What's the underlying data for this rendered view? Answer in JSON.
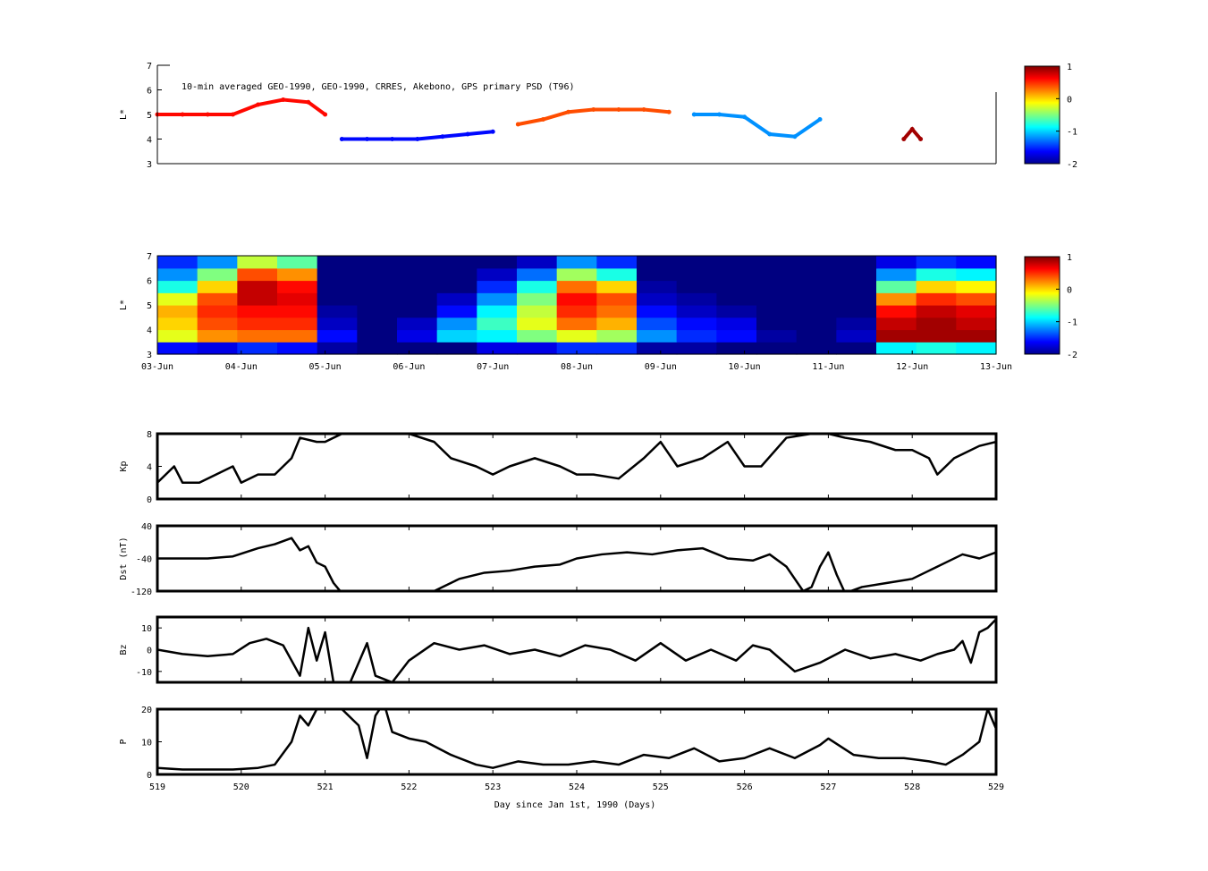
{
  "chart_data": [
    {
      "type": "scatter",
      "panel": "L* primary PSD",
      "title": "10-min averaged GEO-1990, GEO-1990, CRRES, Akebono, GPS  primary PSD (T96)",
      "ylabel": "L*",
      "ylim": [
        3,
        7
      ],
      "yticks": [
        3,
        4,
        5,
        6,
        7
      ],
      "colorbar": {
        "min": -2,
        "max": 1,
        "ticks": [
          "1",
          "0",
          "-1",
          "-2"
        ],
        "colormap": "jet"
      },
      "tracks": [
        {
          "name": "",
          "x": [
            519.0,
            519.3,
            519.6,
            519.9,
            520.2,
            520.5,
            520.8,
            521.0
          ],
          "y": [
            5.0,
            5.0,
            5.0,
            5.0,
            5.4,
            5.6,
            5.5,
            5.0
          ],
          "value": 0.6
        },
        {
          "name": "",
          "x": [
            521.2,
            521.5,
            521.8,
            522.1,
            522.4,
            522.7,
            523.0
          ],
          "y": [
            4.0,
            4.0,
            4.0,
            4.0,
            4.1,
            4.2,
            4.3
          ],
          "value": -1.6
        },
        {
          "name": "",
          "x": [
            523.3,
            523.6,
            523.9,
            524.2,
            524.5,
            524.8,
            525.1
          ],
          "y": [
            4.6,
            4.8,
            5.1,
            5.2,
            5.2,
            5.2,
            5.1
          ],
          "value": 0.4
        },
        {
          "name": "",
          "x": [
            525.4,
            525.7,
            526.0,
            526.3,
            526.6,
            526.9
          ],
          "y": [
            5.0,
            5.0,
            4.9,
            4.2,
            4.1,
            4.8
          ],
          "value": -1.2
        },
        {
          "name": "",
          "x": [
            527.9,
            528.0,
            528.1
          ],
          "y": [
            4.0,
            4.4,
            4.0
          ],
          "value": 0.9
        }
      ]
    },
    {
      "type": "heatmap",
      "panel": "L* PSD reanalysis",
      "ylabel": "L*",
      "ylim": [
        3,
        7
      ],
      "yticks": [
        3,
        4,
        5,
        6,
        7
      ],
      "x_tick_labels": [
        "03-Jun",
        "04-Jun",
        "05-Jun",
        "06-Jun",
        "07-Jun",
        "08-Jun",
        "09-Jun",
        "10-Jun",
        "11-Jun",
        "12-Jun",
        "13-Jun"
      ],
      "colorbar": {
        "min": -2,
        "max": 1,
        "ticks": [
          "1",
          "0",
          "-1",
          "-2"
        ],
        "colormap": "jet"
      },
      "x": [
        519.0,
        519.5,
        520.0,
        520.5,
        521.0,
        521.5,
        522.0,
        522.5,
        523.0,
        523.5,
        524.0,
        524.5,
        525.0,
        525.5,
        526.0,
        526.5,
        527.0,
        527.5,
        528.0,
        528.5,
        529.0
      ],
      "L": [
        3.25,
        3.75,
        4.25,
        4.75,
        5.25,
        5.75,
        6.25,
        6.75
      ],
      "values": [
        [
          -1.6,
          -1.7,
          -1.5,
          -1.6,
          -1.9,
          -2.0,
          -2.0,
          -2.0,
          -1.7,
          -1.7,
          -1.5,
          -1.5,
          -1.9,
          -1.9,
          -2.0,
          -2.0,
          -2.0,
          -2.0,
          -0.9,
          -0.8,
          -0.9
        ],
        [
          -0.2,
          0.2,
          0.3,
          0.3,
          -1.6,
          -2.0,
          -1.7,
          -1.0,
          -0.9,
          -0.5,
          -0.2,
          -0.4,
          -1.2,
          -1.5,
          -1.6,
          -1.9,
          -2.0,
          -1.8,
          0.9,
          0.9,
          0.9
        ],
        [
          0.0,
          0.4,
          0.5,
          0.5,
          -1.8,
          -2.0,
          -1.8,
          -1.2,
          -0.7,
          -0.2,
          0.3,
          0.1,
          -1.4,
          -1.6,
          -1.7,
          -2.0,
          -2.0,
          -1.9,
          0.8,
          0.9,
          0.8
        ],
        [
          0.1,
          0.5,
          0.6,
          0.6,
          -1.9,
          -2.0,
          -2.0,
          -1.6,
          -0.9,
          -0.3,
          0.5,
          0.3,
          -1.6,
          -1.8,
          -1.9,
          -2.0,
          -2.0,
          -2.0,
          0.6,
          0.8,
          0.7
        ],
        [
          -0.2,
          0.4,
          0.8,
          0.7,
          -2.0,
          -2.0,
          -2.0,
          -1.8,
          -1.2,
          -0.5,
          0.6,
          0.4,
          -1.8,
          -1.9,
          -2.0,
          -2.0,
          -2.0,
          -2.0,
          0.2,
          0.5,
          0.4
        ],
        [
          -0.8,
          0.0,
          0.8,
          0.6,
          -2.0,
          -2.0,
          -2.0,
          -2.0,
          -1.5,
          -0.8,
          0.3,
          0.0,
          -1.9,
          -2.0,
          -2.0,
          -2.0,
          -2.0,
          -2.0,
          -0.6,
          0.0,
          -0.1
        ],
        [
          -1.2,
          -0.5,
          0.4,
          0.2,
          -2.0,
          -2.0,
          -2.0,
          -2.0,
          -1.8,
          -1.3,
          -0.4,
          -0.8,
          -2.0,
          -2.0,
          -2.0,
          -2.0,
          -2.0,
          -2.0,
          -1.2,
          -0.8,
          -0.9
        ],
        [
          -1.5,
          -1.2,
          -0.3,
          -0.6,
          -2.0,
          -2.0,
          -2.0,
          -2.0,
          -2.0,
          -1.8,
          -1.2,
          -1.5,
          -2.0,
          -2.0,
          -2.0,
          -2.0,
          -2.0,
          -2.0,
          -1.7,
          -1.5,
          -1.6
        ]
      ]
    },
    {
      "type": "line",
      "panel": "Kp",
      "ylabel": "Kp",
      "ylim": [
        0,
        8
      ],
      "yticks": [
        "0",
        "4",
        "8"
      ],
      "x": [
        519.0,
        519.2,
        519.3,
        519.5,
        519.7,
        519.9,
        520.0,
        520.2,
        520.4,
        520.6,
        520.7,
        520.9,
        521.0,
        521.2,
        521.5,
        521.8,
        522.0,
        522.3,
        522.5,
        522.8,
        523.0,
        523.2,
        523.5,
        523.8,
        524.0,
        524.2,
        524.5,
        524.8,
        525.0,
        525.2,
        525.5,
        525.8,
        526.0,
        526.2,
        526.5,
        526.8,
        527.0,
        527.2,
        527.5,
        527.8,
        528.0,
        528.2,
        528.3,
        528.5,
        528.8,
        529.0
      ],
      "y": [
        2.0,
        4.0,
        2.0,
        2.0,
        3.0,
        4.0,
        2.0,
        3.0,
        3.0,
        5.0,
        7.5,
        7.0,
        7.0,
        8.0,
        8.0,
        8.0,
        8.0,
        7.0,
        5.0,
        4.0,
        3.0,
        4.0,
        5.0,
        4.0,
        3.0,
        3.0,
        2.5,
        5.0,
        7.0,
        4.0,
        5.0,
        7.0,
        4.0,
        4.0,
        7.5,
        8.0,
        8.0,
        7.5,
        7.0,
        6.0,
        6.0,
        5.0,
        3.0,
        5.0,
        6.5,
        7.0
      ]
    },
    {
      "type": "line",
      "panel": "Dst",
      "ylabel": "Dst (nT)",
      "ylim": [
        -120,
        40
      ],
      "yticks": [
        "-120",
        "-40",
        "40"
      ],
      "x": [
        519.0,
        519.3,
        519.6,
        519.9,
        520.2,
        520.4,
        520.6,
        520.7,
        520.8,
        520.9,
        521.0,
        521.1,
        521.2,
        521.5,
        522.0,
        522.3,
        522.6,
        522.9,
        523.2,
        523.5,
        523.8,
        524.0,
        524.3,
        524.6,
        524.9,
        525.2,
        525.5,
        525.8,
        526.1,
        526.3,
        526.5,
        526.6,
        526.7,
        526.8,
        526.9,
        527.0,
        527.1,
        527.2,
        527.4,
        527.7,
        528.0,
        528.2,
        528.4,
        528.6,
        528.8,
        529.0
      ],
      "y": [
        -40,
        -40,
        -40,
        -35,
        -15,
        -5,
        10,
        -20,
        -10,
        -50,
        -60,
        -100,
        -125,
        -130,
        -130,
        -120,
        -90,
        -75,
        -70,
        -60,
        -55,
        -40,
        -30,
        -25,
        -30,
        -20,
        -15,
        -40,
        -45,
        -30,
        -60,
        -90,
        -120,
        -110,
        -60,
        -25,
        -80,
        -125,
        -110,
        -100,
        -90,
        -70,
        -50,
        -30,
        -40,
        -25
      ]
    },
    {
      "type": "line",
      "panel": "Bz",
      "ylabel": "Bz",
      "ylim": [
        -15,
        15
      ],
      "yticks": [
        "-10",
        "0",
        "10"
      ],
      "x": [
        519.0,
        519.3,
        519.6,
        519.9,
        520.1,
        520.3,
        520.5,
        520.7,
        520.8,
        520.9,
        521.0,
        521.1,
        521.2,
        521.3,
        521.5,
        521.6,
        521.8,
        522.0,
        522.3,
        522.6,
        522.9,
        523.2,
        523.5,
        523.8,
        524.1,
        524.4,
        524.7,
        525.0,
        525.3,
        525.6,
        525.9,
        526.1,
        526.3,
        526.6,
        526.9,
        527.2,
        527.5,
        527.8,
        528.1,
        528.3,
        528.5,
        528.6,
        528.7,
        528.8,
        528.9,
        529.0
      ],
      "y": [
        0,
        -2,
        -3,
        -2,
        3,
        5,
        2,
        -12,
        10,
        -5,
        8,
        -15,
        -20,
        -15,
        3,
        -12,
        -15,
        -5,
        3,
        0,
        2,
        -2,
        0,
        -3,
        2,
        0,
        -5,
        3,
        -5,
        0,
        -5,
        2,
        0,
        -10,
        -6,
        0,
        -4,
        -2,
        -5,
        -2,
        0,
        4,
        -6,
        8,
        10,
        14
      ]
    },
    {
      "type": "line",
      "panel": "P",
      "ylabel": "P",
      "xlabel": "Day since Jan 1st, 1990 (Days)",
      "ylim": [
        0,
        20
      ],
      "yticks": [
        "0",
        "10",
        "20"
      ],
      "x_tick_labels": [
        "519",
        "520",
        "521",
        "522",
        "523",
        "524",
        "525",
        "526",
        "527",
        "528",
        "529"
      ],
      "x": [
        519.0,
        519.3,
        519.6,
        519.9,
        520.2,
        520.4,
        520.6,
        520.7,
        520.8,
        520.9,
        521.0,
        521.2,
        521.4,
        521.5,
        521.6,
        521.7,
        521.8,
        522.0,
        522.2,
        522.5,
        522.8,
        523.0,
        523.3,
        523.6,
        523.9,
        524.2,
        524.5,
        524.8,
        525.1,
        525.4,
        525.7,
        526.0,
        526.3,
        526.6,
        526.9,
        527.0,
        527.3,
        527.6,
        527.9,
        528.2,
        528.4,
        528.6,
        528.7,
        528.8,
        528.9,
        529.0
      ],
      "y": [
        2.0,
        1.5,
        1.5,
        1.5,
        2.0,
        3.0,
        10.0,
        18.0,
        15.0,
        20.0,
        22.0,
        20.0,
        15.0,
        5.0,
        18.0,
        22.0,
        13.0,
        11.0,
        10.0,
        6.0,
        3.0,
        2.0,
        4.0,
        3.0,
        3.0,
        4.0,
        3.0,
        6.0,
        5.0,
        8.0,
        4.0,
        5.0,
        8.0,
        5.0,
        9.0,
        11.0,
        6.0,
        5.0,
        5.0,
        4.0,
        3.0,
        6.0,
        8.0,
        10.0,
        20.0,
        14.0
      ]
    }
  ]
}
